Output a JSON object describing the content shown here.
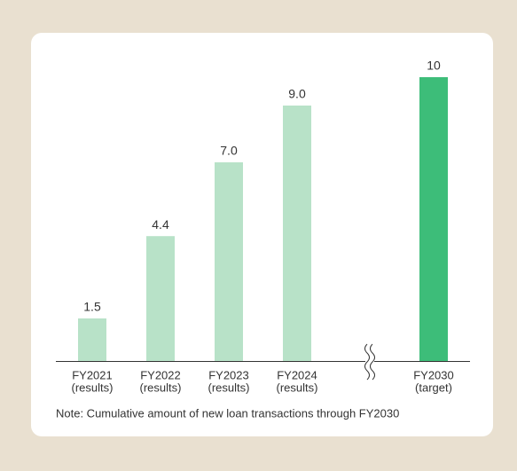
{
  "chart_data": {
    "type": "bar",
    "categories": [
      [
        "FY2021",
        "(results)"
      ],
      [
        "FY2022",
        "(results)"
      ],
      [
        "FY2023",
        "(results)"
      ],
      [
        "FY2024",
        "(results)"
      ],
      [
        "FY2030",
        "(target)"
      ]
    ],
    "values": [
      1.5,
      4.4,
      7,
      9,
      10
    ],
    "value_labels": [
      "1.5",
      "4.4",
      "7.0",
      "9.0",
      "10"
    ],
    "colors": [
      "#b8e2c8",
      "#b8e2c8",
      "#b8e2c8",
      "#b8e2c8",
      "#3dbd79"
    ],
    "note": "Note:  Cumulative amount of new loan transactions through FY2030"
  }
}
